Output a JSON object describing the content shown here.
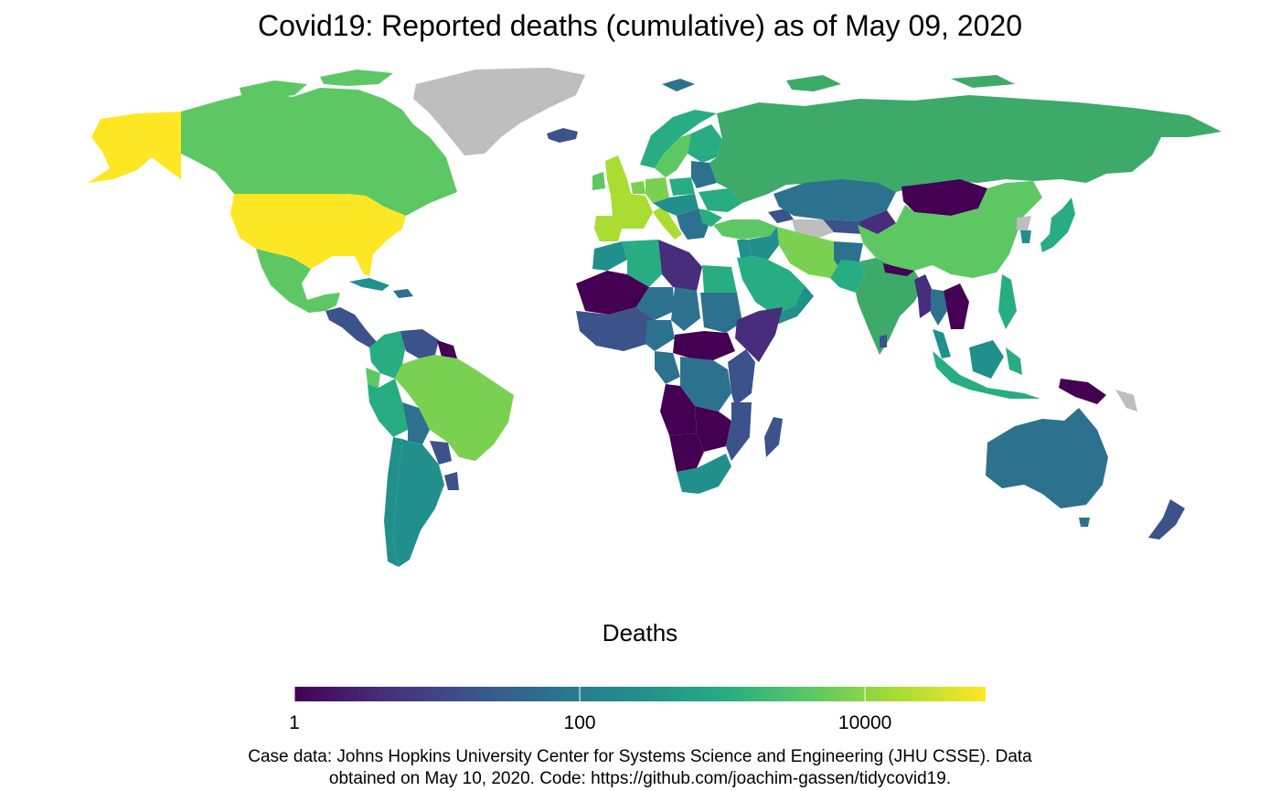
{
  "title": "Covid19: Reported deaths (cumulative) as of May 09, 2020",
  "legend": {
    "title": "Deaths",
    "scale": "log10",
    "range": [
      1,
      70000
    ],
    "ticks": [
      {
        "value": 1,
        "label": "1"
      },
      {
        "value": 100,
        "label": "100"
      },
      {
        "value": 10000,
        "label": "10000"
      }
    ],
    "colors": [
      "#440154",
      "#472D7B",
      "#3B528B",
      "#2C728E",
      "#21908C",
      "#27AD81",
      "#5DC863",
      "#AADC32",
      "#FDE725"
    ],
    "no_data_color": "#BEBEBE"
  },
  "caption": {
    "line1": "Case data: Johns Hopkins University Center for Systems Science and Engineering (JHU CSSE). Data",
    "line2": "obtained on May 10, 2020. Code: https://github.com/joachim-gassen/tidycovid19."
  }
}
